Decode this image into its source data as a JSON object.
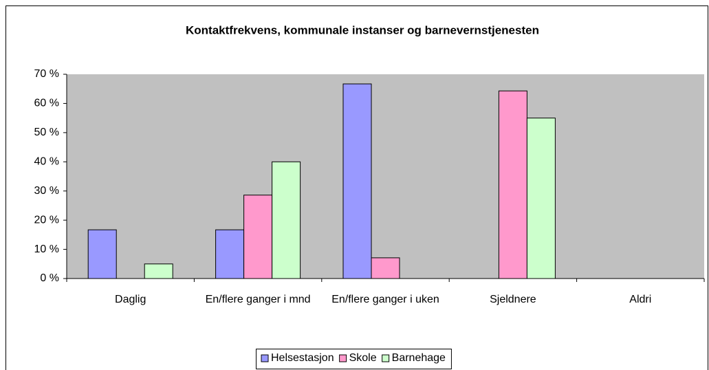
{
  "chart_data": {
    "type": "bar",
    "title": "Kontaktfrekvens, kommunale instanser og barnevernstjenesten",
    "categories": [
      "Daglig",
      "En/flere ganger i mnd",
      "En/flere ganger i uken",
      "Sjeldnere",
      "Aldri"
    ],
    "series": [
      {
        "name": "Helsestasjon",
        "color": "#9999ff",
        "values": [
          16.7,
          16.7,
          66.7,
          0,
          0
        ]
      },
      {
        "name": "Skole",
        "color": "#ff99cc",
        "values": [
          0,
          28.6,
          7.1,
          64.3,
          0
        ]
      },
      {
        "name": "Barnehage",
        "color": "#ccffcc",
        "values": [
          5,
          40,
          0,
          55,
          0
        ]
      }
    ],
    "ylim": [
      0,
      70
    ],
    "yticks": [
      {
        "value": 0,
        "label": "0 %"
      },
      {
        "value": 10,
        "label": "10 %"
      },
      {
        "value": 20,
        "label": "20 %"
      },
      {
        "value": 30,
        "label": "30 %"
      },
      {
        "value": 40,
        "label": "40 %"
      },
      {
        "value": 50,
        "label": "50 %"
      },
      {
        "value": 60,
        "label": "60 %"
      },
      {
        "value": 70,
        "label": "70 %"
      }
    ],
    "grid": false,
    "plot_background": "#c0c0c0",
    "legend": "bottom"
  }
}
